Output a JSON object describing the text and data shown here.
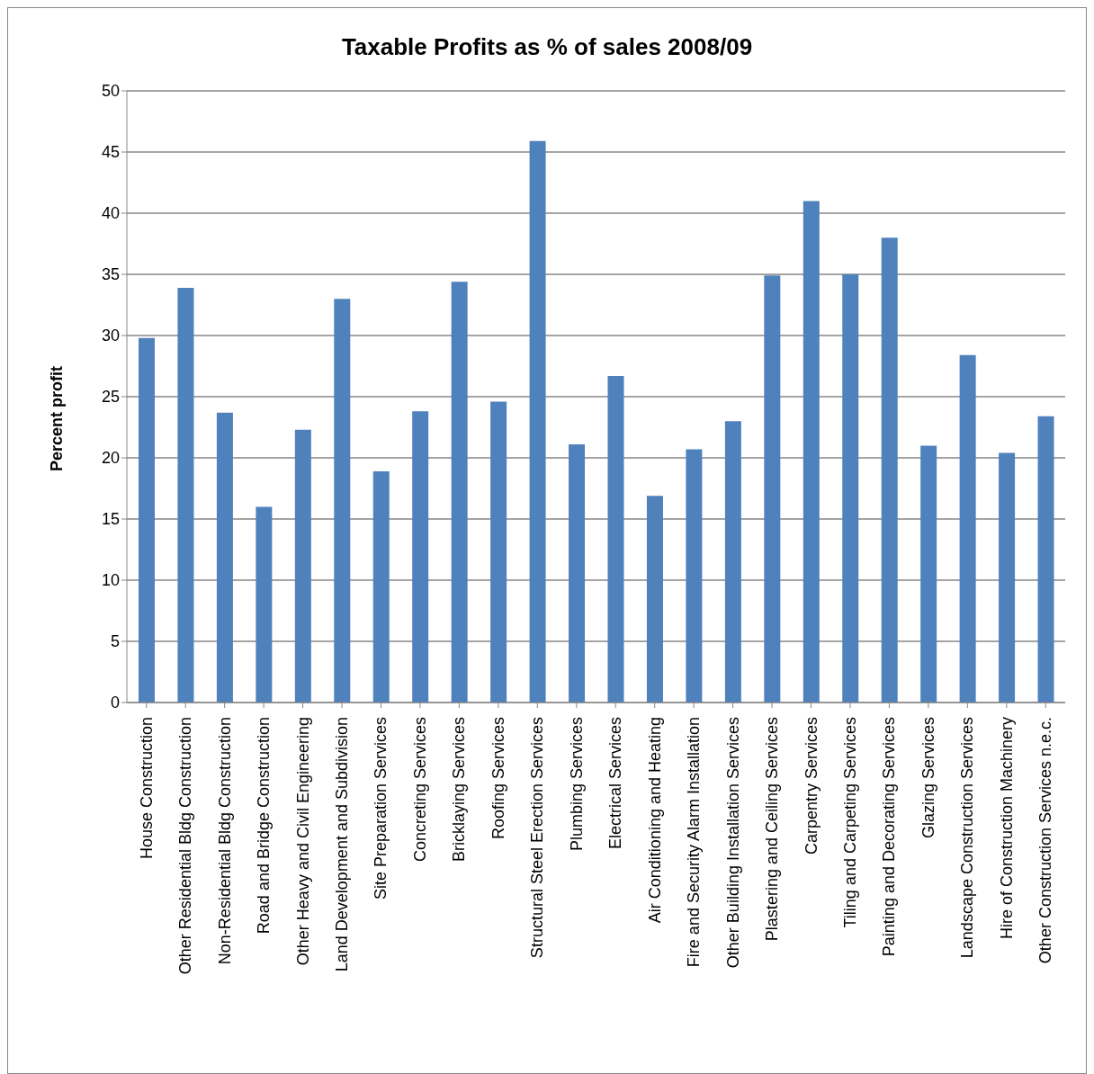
{
  "chart_data": {
    "type": "bar",
    "title": "Taxable Profits as % of sales  2008/09",
    "ylabel": "Percent profit",
    "categories": [
      "House Construction",
      "Other Residential Bldg Construction",
      "Non-Residential Bldg Construction",
      "Road and Bridge Construction",
      "Other Heavy and Civil Engineering",
      "Land Development and Subdivision",
      "Site Preparation Services",
      "Concreting Services",
      "Bricklaying Services",
      "Roofing Services",
      "Structural Steel Erection Services",
      "Plumbing Services",
      "Electrical Services",
      "Air Conditioning and Heating",
      "Fire and Security Alarm Installation",
      "Other Building Installation  Services",
      "Plastering and Ceiling Services",
      "Carpentry Services",
      "Tiling and Carpeting Services",
      "Painting and Decorating Services",
      "Glazing Services",
      "Landscape Construction  Services",
      "Hire of Construction Machinery",
      "Other Construction Services n.e.c."
    ],
    "values": [
      29.8,
      33.9,
      23.7,
      16.0,
      22.3,
      33.0,
      18.9,
      23.8,
      34.4,
      24.6,
      45.9,
      21.1,
      26.7,
      16.9,
      20.7,
      23.0,
      34.9,
      41.0,
      35.0,
      38.0,
      21.0,
      28.4,
      20.4,
      23.4
    ],
    "color": "#4f81bd",
    "ylim": [
      0,
      50
    ],
    "yticks": [
      0,
      5,
      10,
      15,
      20,
      25,
      30,
      35,
      40,
      45,
      50
    ],
    "grid": "y",
    "legend": false
  }
}
